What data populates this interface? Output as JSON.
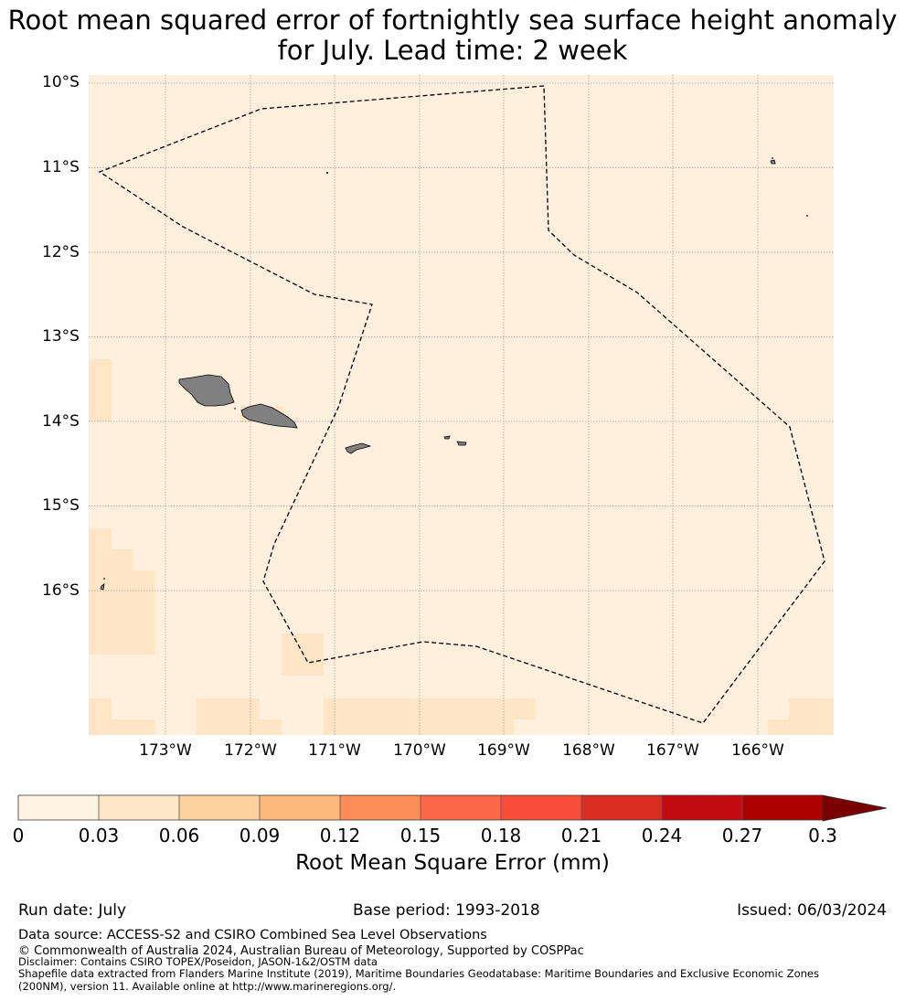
{
  "title": {
    "line1": "Root mean squared error of fortnightly sea surface height anomaly",
    "line2": "for July. Lead time: 2 week"
  },
  "map": {
    "lat_labels": [
      "10°S",
      "11°S",
      "12°S",
      "13°S",
      "14°S",
      "15°S",
      "16°S"
    ],
    "lon_labels": [
      "173°W",
      "172°W",
      "171°W",
      "170°W",
      "169°W",
      "168°W",
      "167°W",
      "166°W"
    ],
    "extent": {
      "lon_min": -173.9,
      "lon_max": -165.1,
      "lat_min": -17.8,
      "lat_max": -10.0
    },
    "background_color": "#fef0dd",
    "land_color": "#808080",
    "eez_boundary_style": "dashed black line",
    "gridlines": true
  },
  "colorbar": {
    "ticks": [
      "0",
      "0.03",
      "0.06",
      "0.09",
      "0.12",
      "0.15",
      "0.18",
      "0.21",
      "0.24",
      "0.27",
      "0.3"
    ],
    "colors": [
      "#fff3e2",
      "#fee6c8",
      "#fdd29e",
      "#fdb87c",
      "#fc8c58",
      "#fb6949",
      "#f94e3a",
      "#d92d22",
      "#c20c12",
      "#ad0000",
      "#7a0000"
    ],
    "extend": "max",
    "label": "Root Mean Square Error (mm)"
  },
  "meta": {
    "run_date": "Run date: July",
    "base_period": "Base period: 1993-2018",
    "issued": "Issued: 06/03/2024"
  },
  "footer": {
    "data_source": "Data source: ACCESS-S2 and CSIRO Combined Sea Level Observations",
    "copyright": "© Commonwealth of Australia 2024, Australian Bureau of Meteorology, Supported by COSPPac",
    "disclaimer": "Disclaimer: Contains CSIRO TOPEX/Poseidon, JASON-1&2/OSTM data",
    "shapefile_line1": "Shapefile data extracted from Flanders Marine Institute (2019), Maritime Boundaries Geodatabase: Maritime Boundaries and Exclusive Economic Zones",
    "shapefile_line2": "(200NM), version 11. Available online at http://www.marineregions.org/."
  }
}
